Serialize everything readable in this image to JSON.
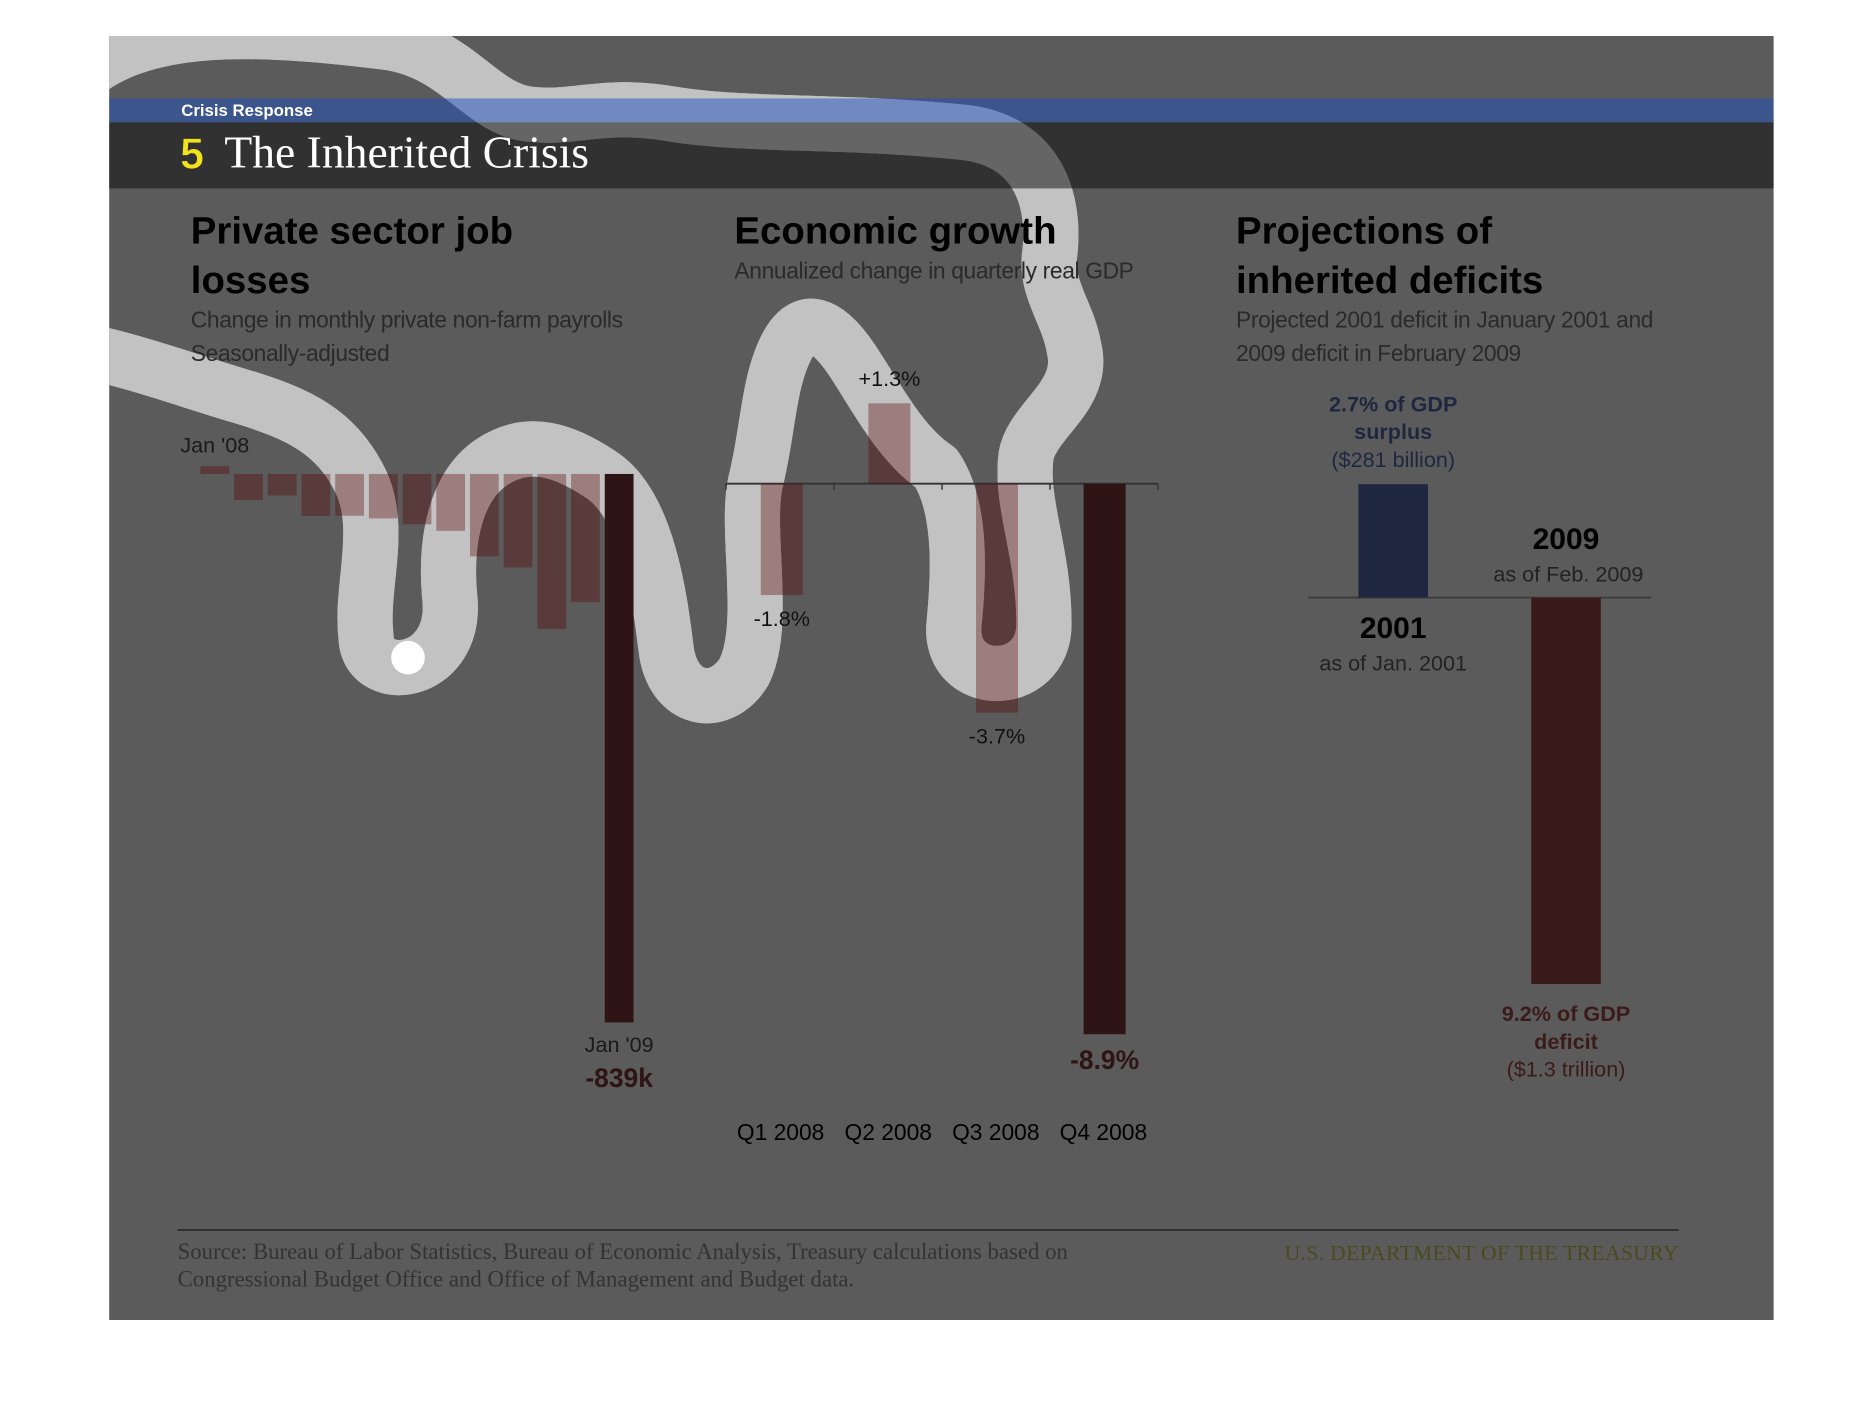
{
  "header": {
    "section": "Crisis Response",
    "number": "5",
    "title": "The Inherited Crisis"
  },
  "chart_data": [
    {
      "type": "bar",
      "title": "Private sector job losses",
      "subtitle": [
        "Change in monthly private non-farm payrolls",
        "Seasonally-adjusted"
      ],
      "categories": [
        "Jan '08",
        null,
        null,
        null,
        null,
        null,
        null,
        null,
        null,
        null,
        null,
        null,
        "Jan '09"
      ],
      "values": [
        12,
        -40,
        -33,
        -64,
        -64,
        -68,
        -77,
        -87,
        -126,
        -143,
        -237,
        -196,
        -839
      ],
      "value_labels": [
        null,
        null,
        null,
        null,
        null,
        null,
        null,
        null,
        null,
        null,
        null,
        null,
        "-839k"
      ],
      "colors": [
        "#5a000059",
        "#5a000059",
        "#5a000059",
        "#5a000059",
        "#5a000059",
        "#5a000059",
        "#5a000059",
        "#5a000059",
        "#5a000059",
        "#5a000059",
        "#5a000059",
        "#5a000059",
        "#2e1414"
      ],
      "ylim": [
        -850,
        100
      ]
    },
    {
      "type": "bar",
      "title": "Economic growth",
      "subtitle": [
        "Annualized change in quarterly real GDP"
      ],
      "categories": [
        "Q1 2008",
        "Q2 2008",
        "Q3 2008",
        "Q4 2008"
      ],
      "values": [
        -1.8,
        1.3,
        -3.7,
        -8.9
      ],
      "value_labels": [
        "-1.8%",
        "+1.3%",
        "-3.7%",
        "-8.9%"
      ],
      "colors": [
        "#5a000059",
        "#5a000059",
        "#5a000059",
        "#2e1414"
      ],
      "ylim": [
        -9,
        2
      ]
    },
    {
      "type": "bar",
      "title": "Projections of inherited deficits",
      "subtitle": [
        "Projected 2001 deficit in January 2001 and 2009 deficit in February 2009"
      ],
      "categories": [
        "2001",
        "2009"
      ],
      "notes": [
        "as of Jan. 2001",
        "as of Feb. 2009"
      ],
      "values": [
        2.7,
        -9.2
      ],
      "value_labels": [
        "2.7% of GDP surplus",
        "9.2% of GDP deficit"
      ],
      "amount_labels": [
        "($281 billion)",
        "($1.3 trillion)"
      ],
      "colors": [
        "#1f2740",
        "#3b1b1a"
      ],
      "ylim": [
        -10,
        4
      ]
    }
  ],
  "footer": {
    "source": "Source: Bureau of Labor Statistics, Bureau of Economic Analysis, Treasury calculations based on Congressional Budget Office and Office of Management and Budget data.",
    "agency": "U.S. DEPARTMENT OF THE TREASURY"
  }
}
